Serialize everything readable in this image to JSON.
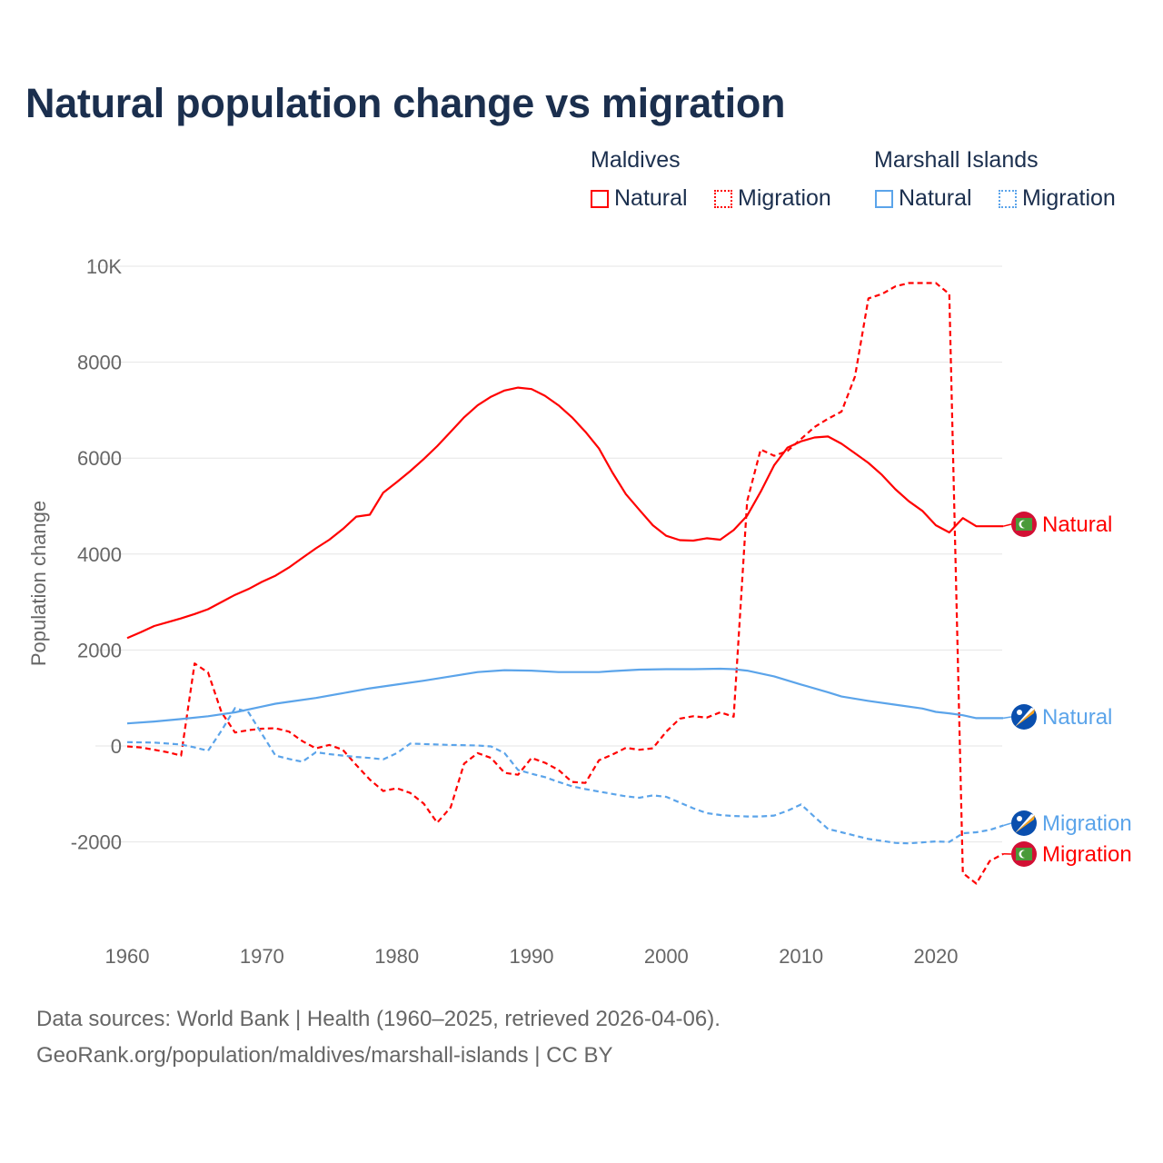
{
  "title": "Natural population change vs migration",
  "legend": {
    "groups": [
      {
        "name": "Maldives",
        "items": [
          {
            "label": "Natural",
            "style": "solid",
            "color": "#ff0000"
          },
          {
            "label": "Migration",
            "style": "dotted",
            "color": "#ff0000"
          }
        ]
      },
      {
        "name": "Marshall Islands",
        "items": [
          {
            "label": "Natural",
            "style": "solid",
            "color": "#5ba4ea"
          },
          {
            "label": "Migration",
            "style": "dotted",
            "color": "#5ba4ea"
          }
        ]
      }
    ]
  },
  "footer": {
    "line1": "Data sources: World Bank | Health (1960–2025, retrieved 2026-04-06).",
    "line2": "GeoRank.org/population/maldives/marshall-islands | CC BY"
  },
  "chart_data": {
    "type": "line",
    "title": "Natural population change vs migration",
    "xlabel": "",
    "ylabel": "Population change",
    "xlim": [
      1960,
      2025
    ],
    "ylim": [
      -3000,
      10000
    ],
    "xticks": [
      {
        "v": 1960,
        "label": "1960"
      },
      {
        "v": 1970,
        "label": "1970"
      },
      {
        "v": 1980,
        "label": "1980"
      },
      {
        "v": 1990,
        "label": "1990"
      },
      {
        "v": 2000,
        "label": "2000"
      },
      {
        "v": 2010,
        "label": "2010"
      },
      {
        "v": 2020,
        "label": "2020"
      }
    ],
    "yticks": [
      {
        "v": 10000,
        "label": "10K"
      },
      {
        "v": 8000,
        "label": "8000"
      },
      {
        "v": 6000,
        "label": "6000"
      },
      {
        "v": 4000,
        "label": "4000"
      },
      {
        "v": 2000,
        "label": "2000"
      },
      {
        "v": 0,
        "label": "0"
      },
      {
        "v": -2000,
        "label": "-2000"
      }
    ],
    "grid": true,
    "legend_position": "top-right",
    "series": [
      {
        "name": "Maldives Natural",
        "end_label": "Natural",
        "country": "maldives",
        "color": "#ff0000",
        "dashed": false,
        "points": [
          [
            1960,
            2250
          ],
          [
            1961,
            2370
          ],
          [
            1962,
            2500
          ],
          [
            1963,
            2580
          ],
          [
            1964,
            2660
          ],
          [
            1965,
            2750
          ],
          [
            1966,
            2850
          ],
          [
            1967,
            3000
          ],
          [
            1968,
            3150
          ],
          [
            1969,
            3270
          ],
          [
            1970,
            3420
          ],
          [
            1971,
            3550
          ],
          [
            1972,
            3720
          ],
          [
            1973,
            3920
          ],
          [
            1974,
            4120
          ],
          [
            1975,
            4300
          ],
          [
            1976,
            4520
          ],
          [
            1977,
            4780
          ],
          [
            1978,
            4820
          ],
          [
            1979,
            5280
          ],
          [
            1980,
            5500
          ],
          [
            1981,
            5730
          ],
          [
            1982,
            5980
          ],
          [
            1983,
            6250
          ],
          [
            1984,
            6550
          ],
          [
            1985,
            6850
          ],
          [
            1986,
            7100
          ],
          [
            1987,
            7280
          ],
          [
            1988,
            7410
          ],
          [
            1989,
            7470
          ],
          [
            1990,
            7440
          ],
          [
            1991,
            7300
          ],
          [
            1992,
            7100
          ],
          [
            1993,
            6850
          ],
          [
            1994,
            6550
          ],
          [
            1995,
            6200
          ],
          [
            1996,
            5700
          ],
          [
            1997,
            5250
          ],
          [
            1998,
            4920
          ],
          [
            1999,
            4600
          ],
          [
            2000,
            4380
          ],
          [
            2001,
            4290
          ],
          [
            2002,
            4280
          ],
          [
            2003,
            4330
          ],
          [
            2004,
            4300
          ],
          [
            2005,
            4500
          ],
          [
            2006,
            4800
          ],
          [
            2007,
            5300
          ],
          [
            2008,
            5850
          ],
          [
            2009,
            6220
          ],
          [
            2010,
            6350
          ],
          [
            2011,
            6430
          ],
          [
            2012,
            6450
          ],
          [
            2013,
            6300
          ],
          [
            2014,
            6100
          ],
          [
            2015,
            5900
          ],
          [
            2016,
            5650
          ],
          [
            2017,
            5350
          ],
          [
            2018,
            5100
          ],
          [
            2019,
            4900
          ],
          [
            2020,
            4600
          ],
          [
            2021,
            4450
          ],
          [
            2022,
            4750
          ],
          [
            2023,
            4580
          ],
          [
            2024,
            4580
          ],
          [
            2025,
            4580
          ]
        ]
      },
      {
        "name": "Maldives Migration",
        "end_label": "Migration",
        "country": "maldives",
        "color": "#ff0000",
        "dashed": true,
        "points": [
          [
            1960,
            -10
          ],
          [
            1961,
            -30
          ],
          [
            1962,
            -80
          ],
          [
            1963,
            -130
          ],
          [
            1964,
            -200
          ],
          [
            1965,
            1720
          ],
          [
            1966,
            1530
          ],
          [
            1967,
            700
          ],
          [
            1968,
            280
          ],
          [
            1969,
            330
          ],
          [
            1970,
            360
          ],
          [
            1971,
            370
          ],
          [
            1972,
            300
          ],
          [
            1973,
            100
          ],
          [
            1974,
            -50
          ],
          [
            1975,
            20
          ],
          [
            1976,
            -80
          ],
          [
            1977,
            -400
          ],
          [
            1978,
            -700
          ],
          [
            1979,
            -940
          ],
          [
            1980,
            -880
          ],
          [
            1981,
            -980
          ],
          [
            1982,
            -1200
          ],
          [
            1983,
            -1600
          ],
          [
            1984,
            -1280
          ],
          [
            1985,
            -370
          ],
          [
            1986,
            -150
          ],
          [
            1987,
            -250
          ],
          [
            1988,
            -560
          ],
          [
            1989,
            -600
          ],
          [
            1990,
            -250
          ],
          [
            1991,
            -350
          ],
          [
            1992,
            -500
          ],
          [
            1993,
            -750
          ],
          [
            1994,
            -770
          ],
          [
            1995,
            -300
          ],
          [
            1996,
            -180
          ],
          [
            1997,
            -40
          ],
          [
            1998,
            -80
          ],
          [
            1999,
            -50
          ],
          [
            2000,
            300
          ],
          [
            2001,
            570
          ],
          [
            2002,
            620
          ],
          [
            2003,
            590
          ],
          [
            2004,
            700
          ],
          [
            2005,
            610
          ],
          [
            2006,
            5100
          ],
          [
            2007,
            6180
          ],
          [
            2008,
            6050
          ],
          [
            2009,
            6150
          ],
          [
            2010,
            6400
          ],
          [
            2011,
            6650
          ],
          [
            2012,
            6820
          ],
          [
            2013,
            6970
          ],
          [
            2014,
            7700
          ],
          [
            2015,
            9330
          ],
          [
            2016,
            9420
          ],
          [
            2017,
            9580
          ],
          [
            2018,
            9650
          ],
          [
            2019,
            9650
          ],
          [
            2020,
            9650
          ],
          [
            2021,
            9420
          ],
          [
            2022,
            -2650
          ],
          [
            2023,
            -2870
          ],
          [
            2024,
            -2400
          ],
          [
            2025,
            -2250
          ]
        ]
      },
      {
        "name": "Marshall Islands Natural",
        "end_label": "Natural",
        "country": "marshall-islands",
        "color": "#5ba4ea",
        "dashed": false,
        "points": [
          [
            1960,
            470
          ],
          [
            1962,
            510
          ],
          [
            1964,
            560
          ],
          [
            1966,
            620
          ],
          [
            1968,
            700
          ],
          [
            1970,
            820
          ],
          [
            1971,
            880
          ],
          [
            1972,
            920
          ],
          [
            1974,
            1000
          ],
          [
            1976,
            1100
          ],
          [
            1978,
            1200
          ],
          [
            1980,
            1280
          ],
          [
            1982,
            1360
          ],
          [
            1984,
            1450
          ],
          [
            1986,
            1540
          ],
          [
            1988,
            1580
          ],
          [
            1990,
            1570
          ],
          [
            1992,
            1540
          ],
          [
            1995,
            1540
          ],
          [
            1996,
            1560
          ],
          [
            1998,
            1590
          ],
          [
            2000,
            1600
          ],
          [
            2002,
            1600
          ],
          [
            2004,
            1610
          ],
          [
            2005,
            1600
          ],
          [
            2006,
            1570
          ],
          [
            2008,
            1450
          ],
          [
            2010,
            1280
          ],
          [
            2012,
            1120
          ],
          [
            2013,
            1030
          ],
          [
            2015,
            940
          ],
          [
            2017,
            860
          ],
          [
            2019,
            780
          ],
          [
            2020,
            710
          ],
          [
            2021,
            680
          ],
          [
            2022,
            640
          ],
          [
            2023,
            580
          ],
          [
            2024,
            580
          ],
          [
            2025,
            580
          ]
        ]
      },
      {
        "name": "Marshall Islands Migration",
        "end_label": "Migration",
        "country": "marshall-islands",
        "color": "#5ba4ea",
        "dashed": true,
        "points": [
          [
            1960,
            80
          ],
          [
            1962,
            70
          ],
          [
            1964,
            30
          ],
          [
            1965,
            -30
          ],
          [
            1966,
            -100
          ],
          [
            1967,
            320
          ],
          [
            1968,
            790
          ],
          [
            1969,
            700
          ],
          [
            1970,
            250
          ],
          [
            1971,
            -200
          ],
          [
            1972,
            -270
          ],
          [
            1973,
            -330
          ],
          [
            1974,
            -130
          ],
          [
            1975,
            -170
          ],
          [
            1976,
            -200
          ],
          [
            1977,
            -230
          ],
          [
            1978,
            -250
          ],
          [
            1979,
            -280
          ],
          [
            1980,
            -150
          ],
          [
            1981,
            50
          ],
          [
            1982,
            40
          ],
          [
            1984,
            20
          ],
          [
            1986,
            10
          ],
          [
            1987,
            -10
          ],
          [
            1988,
            -150
          ],
          [
            1989,
            -500
          ],
          [
            1990,
            -580
          ],
          [
            1991,
            -650
          ],
          [
            1992,
            -750
          ],
          [
            1993,
            -840
          ],
          [
            1994,
            -900
          ],
          [
            1995,
            -950
          ],
          [
            1996,
            -1000
          ],
          [
            1997,
            -1050
          ],
          [
            1998,
            -1080
          ],
          [
            1999,
            -1030
          ],
          [
            2000,
            -1060
          ],
          [
            2001,
            -1180
          ],
          [
            2002,
            -1300
          ],
          [
            2003,
            -1400
          ],
          [
            2004,
            -1440
          ],
          [
            2005,
            -1460
          ],
          [
            2006,
            -1470
          ],
          [
            2007,
            -1470
          ],
          [
            2008,
            -1450
          ],
          [
            2009,
            -1350
          ],
          [
            2010,
            -1220
          ],
          [
            2011,
            -1480
          ],
          [
            2012,
            -1730
          ],
          [
            2013,
            -1800
          ],
          [
            2014,
            -1870
          ],
          [
            2015,
            -1940
          ],
          [
            2016,
            -1980
          ],
          [
            2017,
            -2020
          ],
          [
            2018,
            -2030
          ],
          [
            2019,
            -2010
          ],
          [
            2020,
            -1990
          ],
          [
            2021,
            -2000
          ],
          [
            2022,
            -1820
          ],
          [
            2023,
            -1800
          ],
          [
            2024,
            -1750
          ],
          [
            2025,
            -1660
          ]
        ]
      }
    ]
  }
}
